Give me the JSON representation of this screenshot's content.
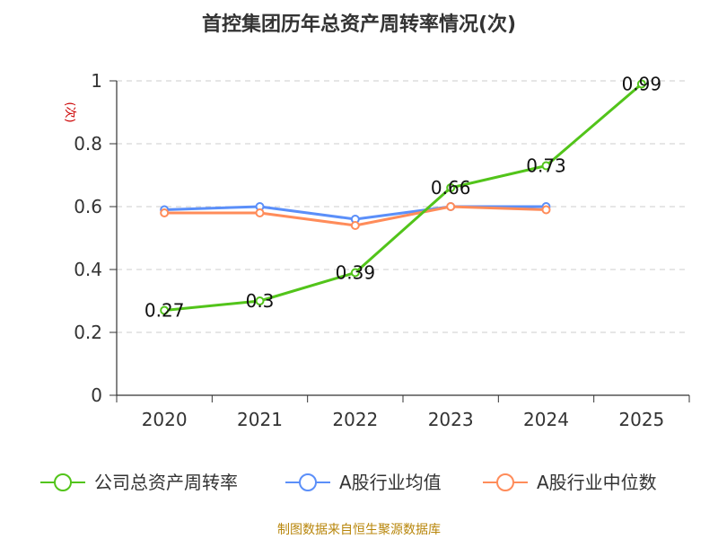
{
  "colors": {
    "green": "#52c41a",
    "blue": "#5b8ff9",
    "orange": "#ff8c5a",
    "grid": "#cccccc",
    "axis": "#333333",
    "ylabel": "#cc0000",
    "source": "#b8860b"
  },
  "source_text": "制图数据来自恒生聚源数据库",
  "chart_data": {
    "type": "line",
    "title": "首控集团历年总资产周转率情况(次)",
    "ylabel": "(次)",
    "xlabel": "",
    "categories": [
      "2020",
      "2021",
      "2022",
      "2023",
      "2024",
      "2025"
    ],
    "ylim": [
      0,
      1
    ],
    "yticks": [
      "0",
      "0.2",
      "0.4",
      "0.6",
      "0.8",
      "1"
    ],
    "grid": true,
    "legend_position": "bottom",
    "series": [
      {
        "name": "公司总资产周转率",
        "color": "#52c41a",
        "values": [
          0.27,
          0.3,
          0.39,
          0.66,
          0.73,
          0.99
        ],
        "data_labels": [
          "0.27",
          "0.3",
          "0.39",
          "0.66",
          "0.73",
          "0.99"
        ]
      },
      {
        "name": "A股行业均值",
        "color": "#5b8ff9",
        "values": [
          0.59,
          0.6,
          0.56,
          0.6,
          0.6,
          null
        ]
      },
      {
        "name": "A股行业中位数",
        "color": "#ff8c5a",
        "values": [
          0.58,
          0.58,
          0.54,
          0.6,
          0.59,
          null
        ]
      }
    ]
  }
}
